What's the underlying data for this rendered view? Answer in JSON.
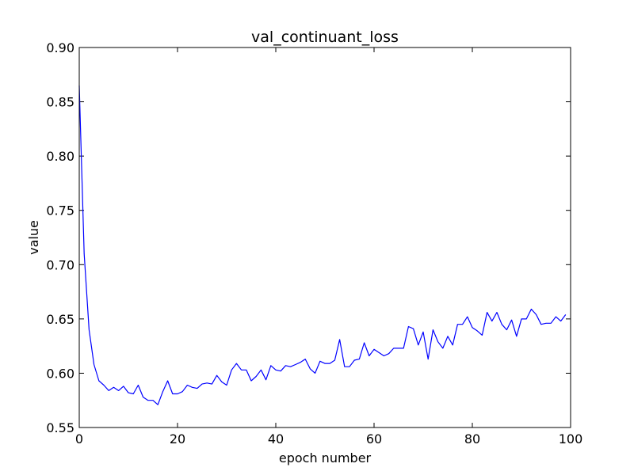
{
  "chart_data": {
    "type": "line",
    "title": "val_continuant_loss",
    "xlabel": "epoch number",
    "ylabel": "value",
    "xlim": [
      0,
      100
    ],
    "ylim": [
      0.55,
      0.9
    ],
    "x_ticks": [
      0,
      20,
      40,
      60,
      80,
      100
    ],
    "y_ticks": [
      0.55,
      0.6,
      0.65,
      0.7,
      0.75,
      0.8,
      0.85,
      0.9
    ],
    "x_tick_labels": [
      "0",
      "20",
      "40",
      "60",
      "80",
      "100"
    ],
    "y_tick_labels": [
      "0.55",
      "0.60",
      "0.65",
      "0.70",
      "0.75",
      "0.80",
      "0.85",
      "0.90"
    ],
    "grid": false,
    "line_color": "#0000ff",
    "series": [
      {
        "x": [
          0,
          1,
          2,
          3,
          4,
          5,
          6,
          7,
          8,
          9,
          10,
          11,
          12,
          13,
          14,
          15,
          16,
          17,
          18,
          19,
          20,
          21,
          22,
          23,
          24,
          25,
          26,
          27,
          28,
          29,
          30,
          31,
          32,
          33,
          34,
          35,
          36,
          37,
          38,
          39,
          40,
          41,
          42,
          43,
          44,
          45,
          46,
          47,
          48,
          49,
          50,
          51,
          52,
          53,
          54,
          55,
          56,
          57,
          58,
          59,
          60,
          61,
          62,
          63,
          64,
          65,
          66,
          67,
          68,
          69,
          70,
          71,
          72,
          73,
          74,
          75,
          76,
          77,
          78,
          79,
          80,
          81,
          82,
          83,
          84,
          85,
          86,
          87,
          88,
          89,
          90,
          91,
          92,
          93,
          94,
          95,
          96,
          97,
          98,
          99
        ],
        "y": [
          0.865,
          0.71,
          0.64,
          0.608,
          0.593,
          0.589,
          0.584,
          0.587,
          0.584,
          0.588,
          0.582,
          0.581,
          0.589,
          0.578,
          0.575,
          0.575,
          0.571,
          0.583,
          0.593,
          0.581,
          0.581,
          0.583,
          0.589,
          0.587,
          0.586,
          0.59,
          0.591,
          0.59,
          0.598,
          0.592,
          0.589,
          0.603,
          0.609,
          0.603,
          0.603,
          0.593,
          0.597,
          0.603,
          0.594,
          0.607,
          0.603,
          0.602,
          0.607,
          0.606,
          0.608,
          0.61,
          0.613,
          0.604,
          0.6,
          0.611,
          0.609,
          0.609,
          0.612,
          0.631,
          0.606,
          0.606,
          0.612,
          0.613,
          0.628,
          0.616,
          0.622,
          0.619,
          0.616,
          0.618,
          0.623,
          0.623,
          0.623,
          0.643,
          0.641,
          0.626,
          0.638,
          0.613,
          0.64,
          0.629,
          0.623,
          0.634,
          0.626,
          0.645,
          0.645,
          0.652,
          0.642,
          0.639,
          0.635,
          0.656,
          0.648,
          0.656,
          0.645,
          0.64,
          0.649,
          0.634,
          0.65,
          0.65,
          0.659,
          0.654,
          0.645,
          0.646,
          0.646,
          0.652,
          0.648,
          0.654
        ]
      }
    ]
  }
}
